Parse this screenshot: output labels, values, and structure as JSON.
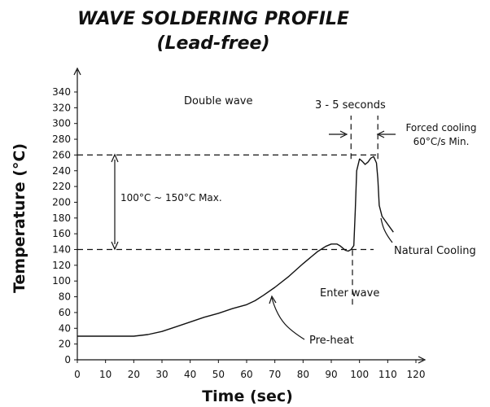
{
  "chart_data": {
    "type": "line",
    "title": "WAVE SOLDERING PROFILE",
    "subtitle": "(Lead-free)",
    "xlabel": "Time (sec)",
    "ylabel": "Temperature (°C)",
    "xlim": [
      0,
      120
    ],
    "ylim": [
      0,
      340
    ],
    "x_ticks": [
      0,
      10,
      20,
      30,
      40,
      50,
      60,
      70,
      80,
      90,
      100,
      110,
      120
    ],
    "y_ticks": [
      0,
      20,
      40,
      60,
      80,
      100,
      120,
      140,
      160,
      180,
      200,
      220,
      240,
      260,
      280,
      300,
      320,
      340
    ],
    "grid": false,
    "legend": "none",
    "series": [
      {
        "color": "#111111",
        "x": [
          0,
          10,
          20,
          25,
          30,
          35,
          40,
          45,
          50,
          55,
          60,
          63,
          66,
          70,
          75,
          80,
          85,
          88,
          90,
          92,
          93,
          94,
          95,
          96,
          97,
          98,
          98.5,
          99,
          100,
          101,
          102,
          103,
          104,
          105,
          106,
          106.5,
          107,
          108,
          112
        ],
        "y": [
          30,
          30,
          30,
          32,
          36,
          42,
          48,
          54,
          59,
          65,
          70,
          75,
          82,
          92,
          106,
          122,
          137,
          144,
          147,
          147,
          145,
          142,
          139,
          138,
          140,
          145,
          190,
          240,
          255,
          252,
          248,
          251,
          256,
          258,
          250,
          230,
          196,
          182,
          162
        ]
      }
    ],
    "reference_lines": [
      {
        "orientation": "horizontal",
        "y": 260,
        "x_from": 0,
        "x_to": 107,
        "style": "dashed"
      },
      {
        "orientation": "horizontal",
        "y": 140,
        "x_from": 0,
        "x_to": 105,
        "style": "dashed"
      },
      {
        "orientation": "vertical",
        "x": 97,
        "y_from": 255,
        "y_to": 310,
        "style": "dashed"
      },
      {
        "orientation": "vertical",
        "x": 106.5,
        "y_from": 255,
        "y_to": 310,
        "style": "dashed"
      },
      {
        "orientation": "vertical",
        "x": 97.5,
        "y_from": 70,
        "y_to": 140,
        "style": "dashed"
      }
    ],
    "annotations": {
      "double_wave": "Double wave",
      "window_seconds": "3 - 5 seconds",
      "forced_cooling_line1": "Forced cooling",
      "forced_cooling_line2": "60°C/s Min.",
      "delta_range": "100°C ~ 150°C Max.",
      "natural_cooling": "Natural Cooling",
      "enter_wave": "Enter wave",
      "pre_heat": "Pre-heat"
    }
  }
}
